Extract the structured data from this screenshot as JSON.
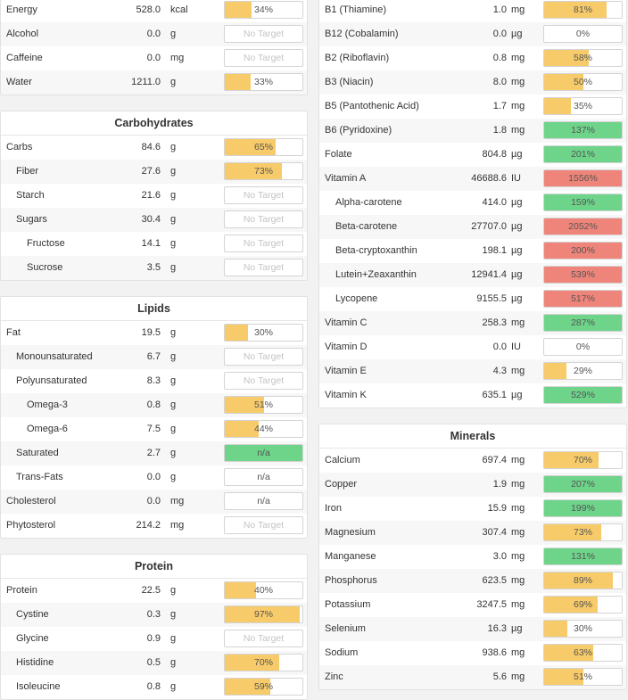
{
  "colors": {
    "yellow": "#f7cb6a",
    "green": "#6dd48a",
    "red": "#ef857a",
    "gray": "#d4d4d4"
  },
  "left_column": [
    {
      "header": "",
      "top": -3,
      "rows": [
        {
          "name": "Energy",
          "value": "528.0",
          "unit": "kcal",
          "label": "34%",
          "pct": 34,
          "color": "yellow",
          "indent": 0
        },
        {
          "name": "Alcohol",
          "value": "0.0",
          "unit": "g",
          "label": "No Target",
          "pct": 0,
          "color": "none",
          "indent": 0
        },
        {
          "name": "Caffeine",
          "value": "0.0",
          "unit": "mg",
          "label": "No Target",
          "pct": 0,
          "color": "none",
          "indent": 0
        },
        {
          "name": "Water",
          "value": "1211.0",
          "unit": "g",
          "label": "33%",
          "pct": 33,
          "color": "yellow",
          "indent": 0
        }
      ]
    },
    {
      "header": "Carbohydrates",
      "top": 124,
      "rows": [
        {
          "name": "Carbs",
          "value": "84.6",
          "unit": "g",
          "label": "65%",
          "pct": 65,
          "color": "yellow",
          "indent": 0
        },
        {
          "name": "Fiber",
          "value": "27.6",
          "unit": "g",
          "label": "73%",
          "pct": 73,
          "color": "yellow",
          "indent": 1
        },
        {
          "name": "Starch",
          "value": "21.6",
          "unit": "g",
          "label": "No Target",
          "pct": 0,
          "color": "none",
          "indent": 1
        },
        {
          "name": "Sugars",
          "value": "30.4",
          "unit": "g",
          "label": "No Target",
          "pct": 0,
          "color": "none",
          "indent": 1
        },
        {
          "name": "Fructose",
          "value": "14.1",
          "unit": "g",
          "label": "No Target",
          "pct": 0,
          "color": "none",
          "indent": 2
        },
        {
          "name": "Sucrose",
          "value": "3.5",
          "unit": "g",
          "label": "No Target",
          "pct": 0,
          "color": "none",
          "indent": 2
        }
      ]
    },
    {
      "header": "Lipids",
      "top": 332,
      "rows": [
        {
          "name": "Fat",
          "value": "19.5",
          "unit": "g",
          "label": "30%",
          "pct": 30,
          "color": "yellow",
          "indent": 0
        },
        {
          "name": "Monounsaturated",
          "value": "6.7",
          "unit": "g",
          "label": "No Target",
          "pct": 0,
          "color": "none",
          "indent": 1
        },
        {
          "name": "Polyunsaturated",
          "value": "8.3",
          "unit": "g",
          "label": "No Target",
          "pct": 0,
          "color": "none",
          "indent": 1
        },
        {
          "name": "Omega-3",
          "value": "0.8",
          "unit": "g",
          "label": "51%",
          "pct": 51,
          "color": "yellow",
          "indent": 2
        },
        {
          "name": "Omega-6",
          "value": "7.5",
          "unit": "g",
          "label": "44%",
          "pct": 44,
          "color": "yellow",
          "indent": 2
        },
        {
          "name": "Saturated",
          "value": "2.7",
          "unit": "g",
          "label": "n/a",
          "pct": 100,
          "color": "green",
          "indent": 1
        },
        {
          "name": "Trans-Fats",
          "value": "0.0",
          "unit": "g",
          "label": "n/a",
          "pct": 0,
          "color": "none",
          "indent": 1
        },
        {
          "name": "Cholesterol",
          "value": "0.0",
          "unit": "mg",
          "label": "n/a",
          "pct": 0,
          "color": "none",
          "indent": 0
        },
        {
          "name": "Phytosterol",
          "value": "214.2",
          "unit": "mg",
          "label": "No Target",
          "pct": 0,
          "color": "none",
          "indent": 0
        }
      ]
    },
    {
      "header": "Protein",
      "top": 621,
      "rows": [
        {
          "name": "Protein",
          "value": "22.5",
          "unit": "g",
          "label": "40%",
          "pct": 40,
          "color": "yellow",
          "indent": 0
        },
        {
          "name": "Cystine",
          "value": "0.3",
          "unit": "g",
          "label": "97%",
          "pct": 97,
          "color": "yellow",
          "indent": 1
        },
        {
          "name": "Glycine",
          "value": "0.9",
          "unit": "g",
          "label": "No Target",
          "pct": 0,
          "color": "none",
          "indent": 1
        },
        {
          "name": "Histidine",
          "value": "0.5",
          "unit": "g",
          "label": "70%",
          "pct": 70,
          "color": "yellow",
          "indent": 1
        },
        {
          "name": "Isoleucine",
          "value": "0.8",
          "unit": "g",
          "label": "59%",
          "pct": 59,
          "color": "yellow",
          "indent": 1
        }
      ]
    }
  ],
  "right_column": [
    {
      "header": "",
      "top": -3,
      "rows": [
        {
          "name": "B1 (Thiamine)",
          "value": "1.0",
          "unit": "mg",
          "label": "81%",
          "pct": 81,
          "color": "yellow",
          "indent": 0
        },
        {
          "name": "B12 (Cobalamin)",
          "value": "0.0",
          "unit": "µg",
          "label": "0%",
          "pct": 0,
          "color": "none",
          "indent": 0
        },
        {
          "name": "B2 (Riboflavin)",
          "value": "0.8",
          "unit": "mg",
          "label": "58%",
          "pct": 58,
          "color": "yellow",
          "indent": 0
        },
        {
          "name": "B3 (Niacin)",
          "value": "8.0",
          "unit": "mg",
          "label": "50%",
          "pct": 50,
          "color": "yellow",
          "indent": 0
        },
        {
          "name": "B5 (Pantothenic Acid)",
          "value": "1.7",
          "unit": "mg",
          "label": "35%",
          "pct": 35,
          "color": "yellow",
          "indent": 0
        },
        {
          "name": "B6 (Pyridoxine)",
          "value": "1.8",
          "unit": "mg",
          "label": "137%",
          "pct": 100,
          "color": "green",
          "indent": 0
        },
        {
          "name": "Folate",
          "value": "804.8",
          "unit": "µg",
          "label": "201%",
          "pct": 100,
          "color": "green",
          "indent": 0
        },
        {
          "name": "Vitamin A",
          "value": "46688.6",
          "unit": "IU",
          "label": "1556%",
          "pct": 100,
          "color": "red",
          "indent": 0
        },
        {
          "name": "Alpha-carotene",
          "value": "414.0",
          "unit": "µg",
          "label": "159%",
          "pct": 100,
          "color": "green",
          "indent": 1
        },
        {
          "name": "Beta-carotene",
          "value": "27707.0",
          "unit": "µg",
          "label": "2052%",
          "pct": 100,
          "color": "red",
          "indent": 1
        },
        {
          "name": "Beta-cryptoxanthin",
          "value": "198.1",
          "unit": "µg",
          "label": "200%",
          "pct": 100,
          "color": "red",
          "indent": 1
        },
        {
          "name": "Lutein+Zeaxanthin",
          "value": "12941.4",
          "unit": "µg",
          "label": "539%",
          "pct": 100,
          "color": "red",
          "indent": 1
        },
        {
          "name": "Lycopene",
          "value": "9155.5",
          "unit": "µg",
          "label": "517%",
          "pct": 100,
          "color": "red",
          "indent": 1
        },
        {
          "name": "Vitamin C",
          "value": "258.3",
          "unit": "mg",
          "label": "287%",
          "pct": 100,
          "color": "green",
          "indent": 0
        },
        {
          "name": "Vitamin D",
          "value": "0.0",
          "unit": "IU",
          "label": "0%",
          "pct": 0,
          "color": "none",
          "indent": 0
        },
        {
          "name": "Vitamin E",
          "value": "4.3",
          "unit": "mg",
          "label": "29%",
          "pct": 29,
          "color": "yellow",
          "indent": 0
        },
        {
          "name": "Vitamin K",
          "value": "635.1",
          "unit": "µg",
          "label": "529%",
          "pct": 100,
          "color": "green",
          "indent": 0
        }
      ]
    },
    {
      "header": "Minerals",
      "top": 475,
      "rows": [
        {
          "name": "Calcium",
          "value": "697.4",
          "unit": "mg",
          "label": "70%",
          "pct": 70,
          "color": "yellow",
          "indent": 0
        },
        {
          "name": "Copper",
          "value": "1.9",
          "unit": "mg",
          "label": "207%",
          "pct": 100,
          "color": "green",
          "indent": 0
        },
        {
          "name": "Iron",
          "value": "15.9",
          "unit": "mg",
          "label": "199%",
          "pct": 100,
          "color": "green",
          "indent": 0
        },
        {
          "name": "Magnesium",
          "value": "307.4",
          "unit": "mg",
          "label": "73%",
          "pct": 73,
          "color": "yellow",
          "indent": 0
        },
        {
          "name": "Manganese",
          "value": "3.0",
          "unit": "mg",
          "label": "131%",
          "pct": 100,
          "color": "green",
          "indent": 0
        },
        {
          "name": "Phosphorus",
          "value": "623.5",
          "unit": "mg",
          "label": "89%",
          "pct": 89,
          "color": "yellow",
          "indent": 0
        },
        {
          "name": "Potassium",
          "value": "3247.5",
          "unit": "mg",
          "label": "69%",
          "pct": 69,
          "color": "yellow",
          "indent": 0
        },
        {
          "name": "Selenium",
          "value": "16.3",
          "unit": "µg",
          "label": "30%",
          "pct": 30,
          "color": "yellow",
          "indent": 0
        },
        {
          "name": "Sodium",
          "value": "938.6",
          "unit": "mg",
          "label": "63%",
          "pct": 63,
          "color": "yellow",
          "indent": 0
        },
        {
          "name": "Zinc",
          "value": "5.6",
          "unit": "mg",
          "label": "51%",
          "pct": 51,
          "color": "yellow",
          "indent": 0
        }
      ]
    }
  ]
}
